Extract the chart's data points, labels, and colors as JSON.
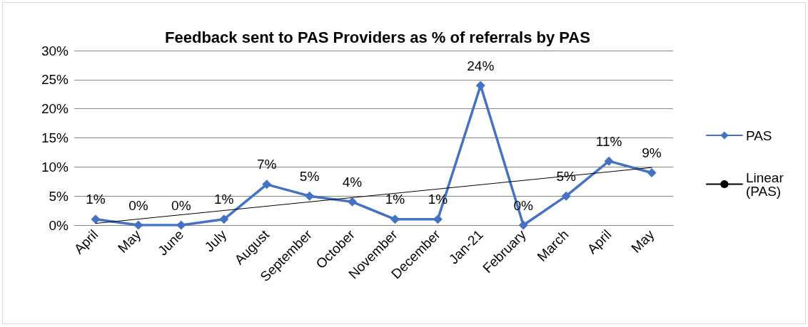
{
  "chart_data": {
    "type": "line",
    "title": "Feedback sent to PAS Providers as % of referrals by PAS",
    "categories": [
      "April",
      "May",
      "June",
      "July",
      "August",
      "September",
      "October",
      "November",
      "December",
      "Jan-21",
      "February",
      "March",
      "April",
      "May"
    ],
    "series": [
      {
        "name": "PAS",
        "color": "#4472c4",
        "marker": "diamond",
        "line_style": "solid",
        "values": [
          1,
          0,
          0,
          1,
          7,
          5,
          4,
          1,
          1,
          24,
          0,
          5,
          11,
          9
        ],
        "value_labels": [
          "1%",
          "0%",
          "0%",
          "1%",
          "7%",
          "5%",
          "4%",
          "1%",
          "1%",
          "24%",
          "0%",
          "5%",
          "11%",
          "9%"
        ]
      },
      {
        "name": "Linear (PAS)",
        "type": "line",
        "color": "#000000",
        "marker": "none",
        "line_style": "solid",
        "values": [
          0.3,
          null,
          null,
          null,
          null,
          null,
          null,
          null,
          null,
          null,
          null,
          null,
          null,
          9.9
        ]
      }
    ],
    "ylim": [
      0,
      30
    ],
    "yticks": [
      {
        "value": 0,
        "label": "0%"
      },
      {
        "value": 5,
        "label": "5%"
      },
      {
        "value": 10,
        "label": "10%"
      },
      {
        "value": 15,
        "label": "15%"
      },
      {
        "value": 20,
        "label": "20%"
      },
      {
        "value": 25,
        "label": "25%"
      },
      {
        "value": 30,
        "label": "30%"
      }
    ],
    "grid": "y",
    "legend": "right"
  }
}
